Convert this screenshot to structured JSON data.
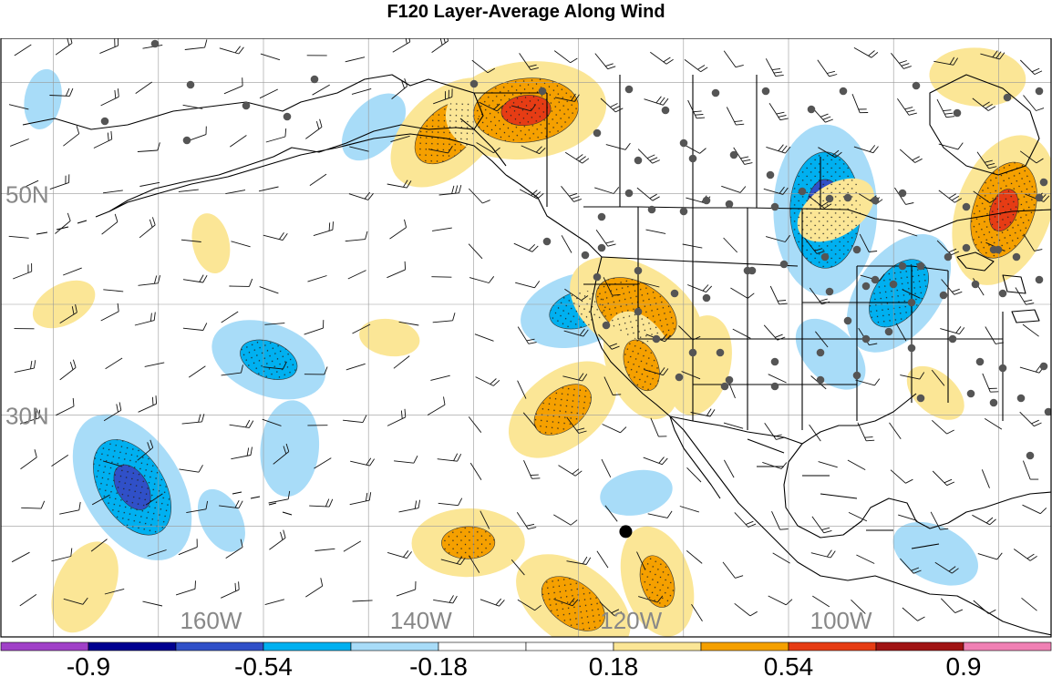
{
  "chart_data": {
    "type": "heatmap",
    "title": "F120 Layer-Average Along Wind",
    "lon_labels": [
      {
        "value": -160,
        "text": "160W"
      },
      {
        "value": -140,
        "text": "140W"
      },
      {
        "value": -120,
        "text": "120W"
      },
      {
        "value": -100,
        "text": "100W"
      }
    ],
    "lat_labels": [
      {
        "value": 50,
        "text": "50N"
      },
      {
        "value": 30,
        "text": "30N"
      }
    ],
    "lon_range": [
      -180,
      -80
    ],
    "lat_range": [
      10,
      64
    ],
    "grid": true,
    "colorbar": {
      "placement": "bottom",
      "levels": [
        -1.08,
        -0.9,
        -0.72,
        -0.54,
        -0.36,
        -0.18,
        0,
        0.18,
        0.36,
        0.54,
        0.72,
        0.9,
        1.08
      ],
      "colors": [
        "#a040c8",
        "#000090",
        "#3050c8",
        "#00b0f0",
        "#a8dcf8",
        "#ffffff",
        "#ffffff",
        "#fbe696",
        "#f5a000",
        "#e63c14",
        "#a01414",
        "#f080b4"
      ],
      "tick_labels": [
        {
          "value": -0.9,
          "text": "-0.9"
        },
        {
          "value": -0.54,
          "text": "-0.54"
        },
        {
          "value": -0.18,
          "text": "-0.18"
        },
        {
          "value": 0.18,
          "text": "0.18"
        },
        {
          "value": 0.54,
          "text": "0.54"
        },
        {
          "value": 0.9,
          "text": "0.9"
        }
      ]
    },
    "anomaly_centers": [
      {
        "lon": -101.5,
        "lat": 48.5,
        "value": -0.62
      },
      {
        "lon": -94.5,
        "lat": 41.0,
        "value": -0.48
      },
      {
        "lon": -125.0,
        "lat": 39.5,
        "value": -0.42
      },
      {
        "lon": -154.5,
        "lat": 35.0,
        "value": -0.42
      },
      {
        "lon": -167.5,
        "lat": 23.5,
        "value": -0.58
      },
      {
        "lon": -152.5,
        "lat": 27.0,
        "value": -0.34
      },
      {
        "lon": -144.5,
        "lat": 56.0,
        "value": -0.28
      },
      {
        "lon": -119.5,
        "lat": 23.0,
        "value": -0.26
      },
      {
        "lon": -91.0,
        "lat": 17.5,
        "value": -0.32
      },
      {
        "lon": -159.0,
        "lat": 20.5,
        "value": -0.24
      },
      {
        "lon": -176.0,
        "lat": 58.5,
        "value": -0.22
      },
      {
        "lon": -137.5,
        "lat": 55.5,
        "value": 0.48
      },
      {
        "lon": -130.0,
        "lat": 57.5,
        "value": 0.58
      },
      {
        "lon": -119.5,
        "lat": 39.5,
        "value": 0.52
      },
      {
        "lon": -119.0,
        "lat": 34.5,
        "value": 0.4
      },
      {
        "lon": -113.5,
        "lat": 34.5,
        "value": 0.36
      },
      {
        "lon": -126.5,
        "lat": 30.5,
        "value": 0.44
      },
      {
        "lon": -135.5,
        "lat": 18.5,
        "value": 0.4
      },
      {
        "lon": -125.5,
        "lat": 13.0,
        "value": 0.46
      },
      {
        "lon": -117.5,
        "lat": 15.0,
        "value": 0.4
      },
      {
        "lon": -84.5,
        "lat": 48.5,
        "value": 0.56
      },
      {
        "lon": -100.5,
        "lat": 48.5,
        "value": 0.3
      },
      {
        "lon": -87.0,
        "lat": 60.5,
        "value": 0.34
      },
      {
        "lon": -91.0,
        "lat": 32.0,
        "value": 0.24
      },
      {
        "lon": -160.0,
        "lat": 45.5,
        "value": 0.22
      },
      {
        "lon": -172.0,
        "lat": 14.5,
        "value": 0.34
      },
      {
        "lon": -174.0,
        "lat": 40.0,
        "value": 0.24
      },
      {
        "lon": -143.0,
        "lat": 37.0,
        "value": 0.22
      },
      {
        "lon": -101.0,
        "lat": 35.5,
        "value": -0.3
      }
    ],
    "marker": {
      "lon": -120.5,
      "lat": 19.5
    }
  }
}
